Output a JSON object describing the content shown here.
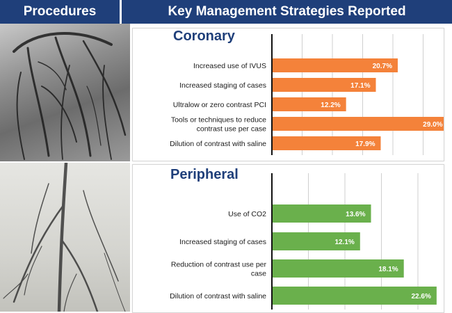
{
  "header": {
    "left_title": "Procedures",
    "right_title": "Key Management Strategies Reported"
  },
  "images": {
    "top": "coronary-angiogram",
    "bottom": "peripheral-angiogram"
  },
  "colors": {
    "header_bg": "#1f3f7a",
    "coronary_bar": "#f4823a",
    "peripheral_bar": "#6ab04c"
  },
  "chart_data": [
    {
      "type": "bar",
      "orientation": "horizontal",
      "title": "Coronary",
      "categories": [
        "Increased use of IVUS",
        "Increased staging of cases",
        "Ultralow or zero contrast PCI",
        "Tools or techniques to reduce contrast use per case",
        "Dilution of contrast with saline"
      ],
      "values": [
        20.7,
        17.1,
        12.2,
        29.0,
        17.9
      ],
      "value_labels": [
        "20.7%",
        "17.1%",
        "12.2%",
        "29.0%",
        "17.9%"
      ],
      "xlim": [
        0,
        35
      ],
      "grid": true,
      "color": "#f4823a"
    },
    {
      "type": "bar",
      "orientation": "horizontal",
      "title": "Peripheral",
      "categories": [
        "Use of CO2",
        "Increased staging of cases",
        "Reduction of contrast use per case",
        "Dilution of contrast with saline"
      ],
      "values": [
        13.6,
        12.1,
        18.1,
        22.6
      ],
      "value_labels": [
        "13.6%",
        "12.1%",
        "18.1%",
        "22.6%"
      ],
      "xlim": [
        0,
        25
      ],
      "grid": true,
      "color": "#6ab04c"
    }
  ]
}
